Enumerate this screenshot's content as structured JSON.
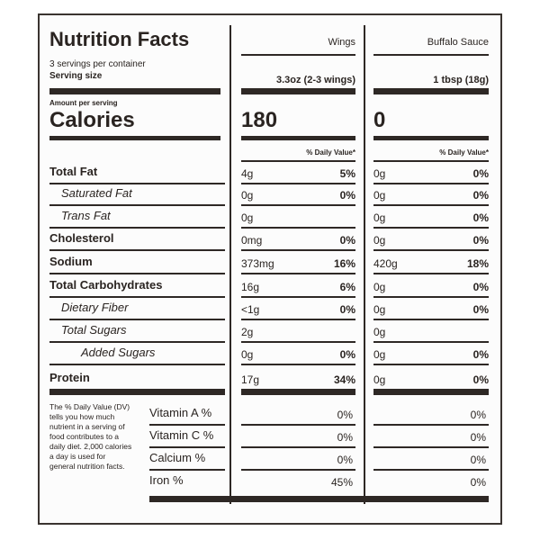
{
  "title": "Nutrition Facts",
  "servings": "3 servings per container",
  "serving_size_label": "Serving size",
  "amount_per_serving": "Amount per serving",
  "calories_label": "Calories",
  "columns": [
    {
      "name": "Wings",
      "serving_size": "3.3oz (2-3 wings)",
      "calories": "180",
      "dv_header": "% Daily Value*"
    },
    {
      "name": "Buffalo Sauce",
      "serving_size": "1 tbsp (18g)",
      "calories": "0",
      "dv_header": "% Daily Value*"
    }
  ],
  "nutrients": [
    {
      "label": "Total Fat",
      "values": [
        {
          "amount": "4g",
          "dv": "5%"
        },
        {
          "amount": "0g",
          "dv": "0%"
        }
      ]
    },
    {
      "label": "Saturated Fat",
      "values": [
        {
          "amount": "0g",
          "dv": "0%"
        },
        {
          "amount": "0g",
          "dv": "0%"
        }
      ]
    },
    {
      "label": "Trans Fat",
      "values": [
        {
          "amount": "0g"
        },
        {
          "amount": "0g",
          "dv": "0%"
        }
      ]
    },
    {
      "label": "Cholesterol",
      "values": [
        {
          "amount": "0mg",
          "dv": "0%"
        },
        {
          "amount": "0g",
          "dv": "0%"
        }
      ]
    },
    {
      "label": "Sodium",
      "values": [
        {
          "amount": "373mg",
          "dv": "16%"
        },
        {
          "amount": "420g",
          "dv": "18%"
        }
      ]
    },
    {
      "label": "Total Carbohydrates",
      "values": [
        {
          "amount": "16g",
          "dv": "6%"
        },
        {
          "amount": "0g",
          "dv": "0%"
        }
      ]
    },
    {
      "label": "Dietary Fiber",
      "values": [
        {
          "amount": "<1g",
          "dv": "0%"
        },
        {
          "amount": "0g",
          "dv": "0%"
        }
      ]
    },
    {
      "label": "Total Sugars",
      "values": [
        {
          "amount": "2g"
        },
        {
          "amount": "0g"
        }
      ]
    },
    {
      "label": "Added Sugars",
      "values": [
        {
          "amount": "0g",
          "dv": "0%"
        },
        {
          "amount": "0g",
          "dv": "0%"
        }
      ]
    },
    {
      "label": "Protein",
      "values": [
        {
          "amount": "17g",
          "dv": "34%"
        },
        {
          "amount": "0g",
          "dv": "0%"
        }
      ]
    }
  ],
  "footnote": "The % Daily Value (DV) tells you how much nutrient in a serving of food contributes to a daily diet. 2,000 calories a day is used for general nutrition facts.",
  "vitamins": [
    {
      "label": "Vitamin A %",
      "values": [
        "0%",
        "0%"
      ]
    },
    {
      "label": "Vitamin C %",
      "values": [
        "0%",
        "0%"
      ]
    },
    {
      "label": "Calcium %",
      "values": [
        "0%",
        "0%"
      ]
    },
    {
      "label": "Iron %",
      "values": [
        "45%",
        "0%"
      ]
    }
  ]
}
